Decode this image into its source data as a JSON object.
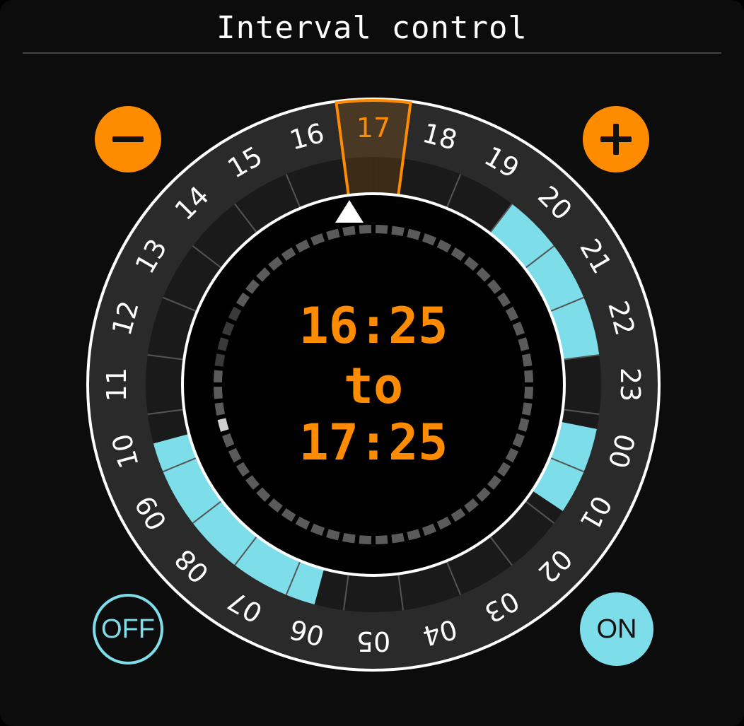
{
  "title": "Interval control",
  "buttons": {
    "minus": "−",
    "plus": "+",
    "off": "OFF",
    "on": "ON"
  },
  "dial": {
    "hour_labels": [
      "00",
      "01",
      "02",
      "03",
      "04",
      "05",
      "06",
      "07",
      "08",
      "09",
      "10",
      "11",
      "12",
      "13",
      "14",
      "15",
      "16",
      "17",
      "18",
      "19",
      "20",
      "21",
      "22",
      "23"
    ],
    "selected_hour": 17,
    "active_ranges": [
      {
        "start_hour": 6,
        "end_hour": 10
      },
      {
        "start_hour": 19.5,
        "end_hour": 22.5
      },
      {
        "start_hour": 23.75,
        "end_hour": 1.25
      }
    ]
  },
  "readout": {
    "start": "16:25",
    "separator": "to",
    "end": "17:25"
  },
  "colors": {
    "accent": "#ff8c00",
    "active_range": "#7ddde9",
    "ring": "#2a2a2a",
    "inner_band": "#1a1a1a",
    "background": "#0c0c0c"
  },
  "icons": {
    "minus": "minus-icon",
    "plus": "plus-icon",
    "pointer": "triangle-pointer-icon"
  }
}
